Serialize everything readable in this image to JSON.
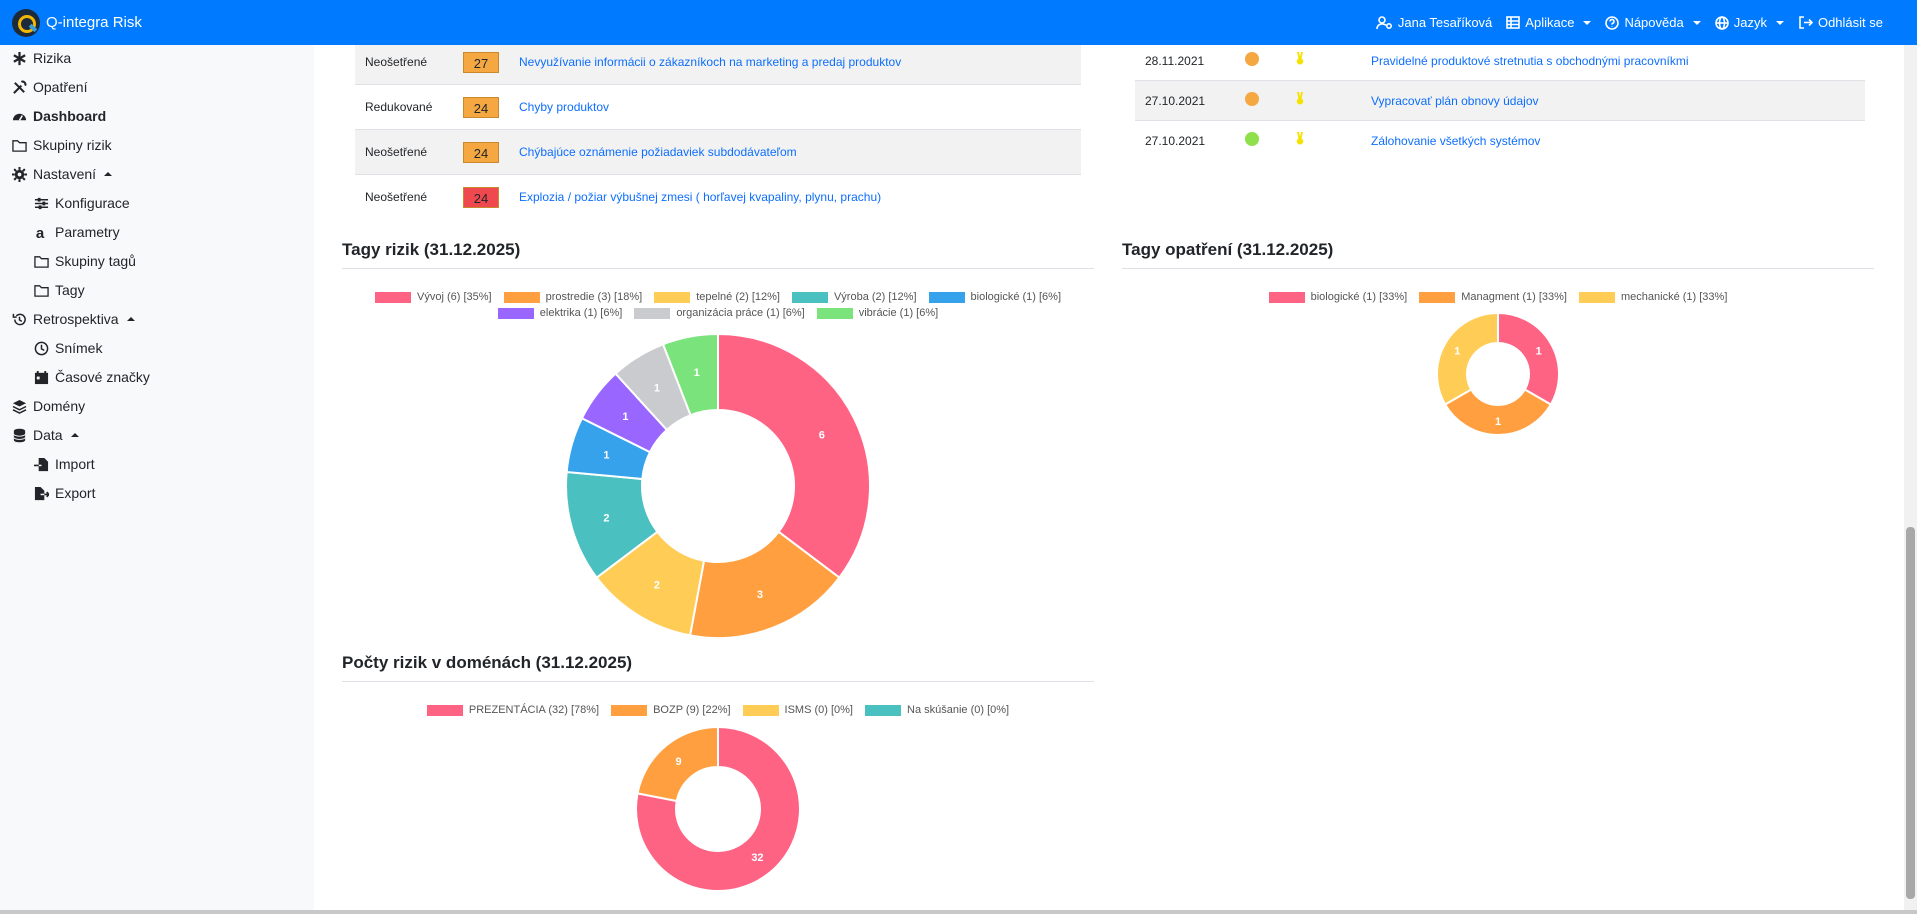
{
  "app": {
    "title": "Q-integra Risk"
  },
  "nav": {
    "user": "Jana Tesaříková",
    "apps": "Aplikace",
    "help": "Nápověda",
    "language": "Jazyk",
    "logout": "Odhlásit se"
  },
  "sidebar": {
    "items": [
      {
        "label": "Rizika",
        "icon": "asterisk-icon"
      },
      {
        "label": "Opatření",
        "icon": "tools-icon"
      },
      {
        "label": "Dashboard",
        "icon": "dashboard-icon",
        "active": true
      },
      {
        "label": "Skupiny rizik",
        "icon": "folder-icon"
      },
      {
        "label": "Nastavení",
        "icon": "gear-icon",
        "expanded": true
      },
      {
        "label": "Konfigurace",
        "icon": "sliders-icon"
      },
      {
        "label": "Parametry",
        "icon": "letter-a-icon"
      },
      {
        "label": "Skupiny tagů",
        "icon": "folder-icon"
      },
      {
        "label": "Tagy",
        "icon": "folder-icon"
      },
      {
        "label": "Retrospektiva",
        "icon": "history-icon",
        "expanded": true
      },
      {
        "label": "Snímek",
        "icon": "clock-icon"
      },
      {
        "label": "Časové značky",
        "icon": "calendar-icon"
      },
      {
        "label": "Domény",
        "icon": "layers-icon"
      },
      {
        "label": "Data",
        "icon": "database-icon",
        "expanded": true
      },
      {
        "label": "Import",
        "icon": "file-import-icon"
      },
      {
        "label": "Export",
        "icon": "file-export-icon"
      }
    ]
  },
  "risks_table": {
    "rows": [
      {
        "status": "Neošetřené",
        "score": "27",
        "score_color": "#f5a742",
        "title": "Nevyužívanie informácii o zákazníkoch na marketing a predaj produktov"
      },
      {
        "status": "Redukované",
        "score": "24",
        "score_color": "#f5a742",
        "title": "Chyby produktov"
      },
      {
        "status": "Neošetřené",
        "score": "24",
        "score_color": "#f5a742",
        "title": "Chýbajúce oznámenie požiadaviek subdodávateľom"
      },
      {
        "status": "Neošetřené",
        "score": "24",
        "score_color": "#f0484f",
        "title": "Explozia / požiar výbušnej zmesi ( horľavej kvapaliny, plynu, prachu)"
      }
    ]
  },
  "measures_table": {
    "rows": [
      {
        "date": "28.11.2021",
        "status_color": "#f5a742",
        "title": "Pravidelné produktové stretnutia s obchodnými pracovníkmi"
      },
      {
        "date": "27.10.2021",
        "status_color": "#f5a742",
        "title": "Vypracovať plán obnovy údajov"
      },
      {
        "date": "27.10.2021",
        "status_color": "#8fe04a",
        "title": "Zálohovanie všetkých systémov"
      }
    ]
  },
  "sections": {
    "risk_tags": "Tagy rizik (31.12.2025)",
    "measure_tags": "Tagy opatření (31.12.2025)",
    "domains": "Počty rizik v doménách (31.12.2025)"
  },
  "chart_data": [
    {
      "type": "pie",
      "title": "Tagy rizik (31.12.2025)",
      "categories": [
        "Vývoj",
        "prostredie",
        "tepelné",
        "Výroba",
        "biologické",
        "elektrika",
        "organizácia práce",
        "vibrácie"
      ],
      "values": [
        6,
        3,
        2,
        2,
        1,
        1,
        1,
        1
      ],
      "legend": [
        "Vývoj (6) [35%]",
        "prostredie (3) [18%]",
        "tepelné (2) [12%]",
        "Výroba (2) [12%]",
        "biologické (1) [6%]",
        "elektrika (1) [6%]",
        "organizácia práce (1) [6%]",
        "vibrácie (1) [6%]"
      ],
      "colors": [
        "#ff6384",
        "#ff9f40",
        "#ffcd56",
        "#4bc0c0",
        "#36a2eb",
        "#9966ff",
        "#c9cbcf",
        "#7be37b"
      ],
      "legend_placement": "top"
    },
    {
      "type": "pie",
      "title": "Tagy opatření (31.12.2025)",
      "categories": [
        "biologické",
        "Managment",
        "mechanické"
      ],
      "values": [
        1,
        1,
        1
      ],
      "legend": [
        "biologické (1) [33%]",
        "Managment (1) [33%]",
        "mechanické (1) [33%]"
      ],
      "colors": [
        "#ff6384",
        "#ff9f40",
        "#ffcd56"
      ],
      "legend_placement": "top"
    },
    {
      "type": "pie",
      "title": "Počty rizik v doménách (31.12.2025)",
      "categories": [
        "PREZENTÁCIA",
        "BOZP",
        "ISMS",
        "Na skúšanie"
      ],
      "values": [
        32,
        9,
        0,
        0
      ],
      "legend": [
        "PREZENTÁCIA (32) [78%]",
        "BOZP (9) [22%]",
        "ISMS (0) [0%]",
        "Na skúšanie  (0) [0%]"
      ],
      "colors": [
        "#ff6384",
        "#ff9f40",
        "#ffcd56",
        "#4bc0c0"
      ],
      "legend_placement": "top"
    }
  ]
}
